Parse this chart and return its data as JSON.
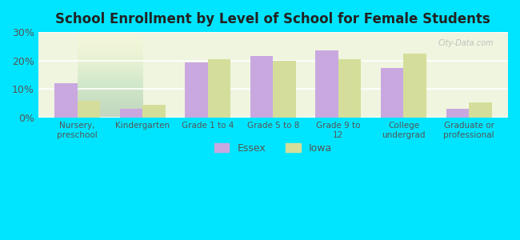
{
  "title": "School Enrollment by Level of School for Female Students",
  "categories": [
    "Nursery,\npreschool",
    "Kindergarten",
    "Grade 1 to 4",
    "Grade 5 to 8",
    "Grade 9 to\n12",
    "College\nundergrad",
    "Graduate or\nprofessional"
  ],
  "essex_values": [
    12,
    3,
    19.5,
    21.5,
    23.5,
    17.5,
    3
  ],
  "iowa_values": [
    6,
    4.5,
    20.5,
    20,
    20.5,
    22.5,
    5.5
  ],
  "essex_color": "#c9a8e0",
  "iowa_color": "#d4de9a",
  "background_outer": "#00e5ff",
  "background_inner": "#f0f5e0",
  "ylim": [
    0,
    30
  ],
  "yticks": [
    0,
    10,
    20,
    30
  ],
  "ytick_labels": [
    "0%",
    "10%",
    "20%",
    "30%"
  ],
  "bar_width": 0.35,
  "legend_labels": [
    "Essex",
    "Iowa"
  ],
  "watermark": "City-Data.com"
}
